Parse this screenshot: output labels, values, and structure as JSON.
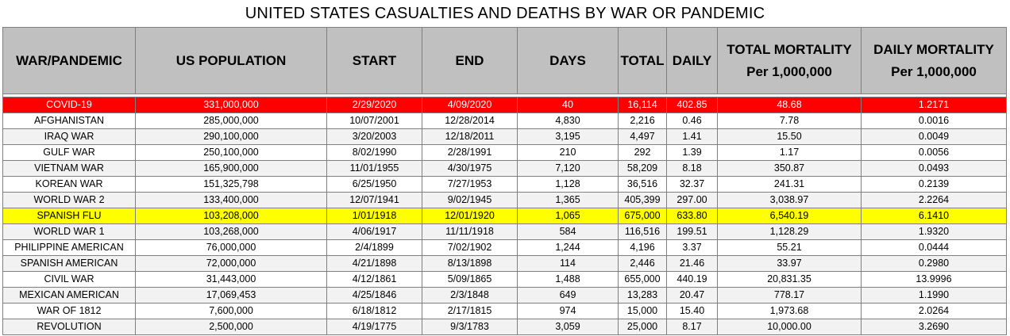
{
  "chart_data": {
    "type": "table",
    "title": "UNITED STATES CASUALTIES AND DEATHS BY WAR OR PANDEMIC",
    "columns": [
      "WAR/PANDEMIC",
      "US POPULATION",
      "START",
      "END",
      "DAYS",
      "TOTAL",
      "DAILY",
      "TOTAL MORTALITY Per 1,000,000",
      "DAILY MORTALITY Per 1,000,000"
    ],
    "highlight_colors": {
      "red": "#ff0000",
      "yellow": "#ffff00",
      "header": "#c0c0c0"
    },
    "rows": [
      {
        "cells": [
          "COVID-19",
          "331,000,000",
          "2/29/2020",
          "4/09/2020",
          "40",
          "16,114",
          "402.85",
          "48.68",
          "1.2171"
        ],
        "highlight": "red"
      },
      {
        "cells": [
          "AFGHANISTAN",
          "285,000,000",
          "10/07/2001",
          "12/28/2014",
          "4,830",
          "2,216",
          "0.46",
          "7.78",
          "0.0016"
        ],
        "highlight": ""
      },
      {
        "cells": [
          "IRAQ WAR",
          "290,100,000",
          "3/20/2003",
          "12/18/2011",
          "3,195",
          "4,497",
          "1.41",
          "15.50",
          "0.0049"
        ],
        "highlight": ""
      },
      {
        "cells": [
          "GULF WAR",
          "250,100,000",
          "8/02/1990",
          "2/28/1991",
          "210",
          "292",
          "1.39",
          "1.17",
          "0.0056"
        ],
        "highlight": ""
      },
      {
        "cells": [
          "VIETNAM WAR",
          "165,900,000",
          "11/01/1955",
          "4/30/1975",
          "7,120",
          "58,209",
          "8.18",
          "350.87",
          "0.0493"
        ],
        "highlight": ""
      },
      {
        "cells": [
          "KOREAN WAR",
          "151,325,798",
          "6/25/1950",
          "7/27/1953",
          "1,128",
          "36,516",
          "32.37",
          "241.31",
          "0.2139"
        ],
        "highlight": ""
      },
      {
        "cells": [
          "WORLD WAR 2",
          "133,400,000",
          "12/07/1941",
          "9/02/1945",
          "1,365",
          "405,399",
          "297.00",
          "3,038.97",
          "2.2264"
        ],
        "highlight": ""
      },
      {
        "cells": [
          "SPANISH FLU",
          "103,208,000",
          "1/01/1918",
          "12/01/1920",
          "1,065",
          "675,000",
          "633.80",
          "6,540.19",
          "6.1410"
        ],
        "highlight": "yellow"
      },
      {
        "cells": [
          "WORLD WAR 1",
          "103,268,000",
          "4/06/1917",
          "11/11/1918",
          "584",
          "116,516",
          "199.51",
          "1,128.29",
          "1.9320"
        ],
        "highlight": ""
      },
      {
        "cells": [
          "PHILIPPINE AMERICAN",
          "76,000,000",
          "2/4/1899",
          "7/02/1902",
          "1,244",
          "4,196",
          "3.37",
          "55.21",
          "0.0444"
        ],
        "highlight": ""
      },
      {
        "cells": [
          "SPANISH AMERICAN",
          "72,000,000",
          "4/21/1898",
          "8/13/1898",
          "114",
          "2,446",
          "21.46",
          "33.97",
          "0.2980"
        ],
        "highlight": ""
      },
      {
        "cells": [
          "CIVIL WAR",
          "31,443,000",
          "4/12/1861",
          "5/09/1865",
          "1,488",
          "655,000",
          "440.19",
          "20,831.35",
          "13.9996"
        ],
        "highlight": ""
      },
      {
        "cells": [
          "MEXICAN AMERICAN",
          "17,069,453",
          "4/25/1846",
          "2/3/1848",
          "649",
          "13,283",
          "20.47",
          "778.17",
          "1.1990"
        ],
        "highlight": ""
      },
      {
        "cells": [
          "WAR OF 1812",
          "7,600,000",
          "6/18/1812",
          "2/17/1815",
          "974",
          "15,000",
          "15.40",
          "1,973.68",
          "2.0264"
        ],
        "highlight": ""
      },
      {
        "cells": [
          "REVOLUTION",
          "2,500,000",
          "4/19/1775",
          "9/3/1783",
          "3,059",
          "25,000",
          "8.17",
          "10,000.00",
          "3.2690"
        ],
        "highlight": ""
      }
    ]
  }
}
